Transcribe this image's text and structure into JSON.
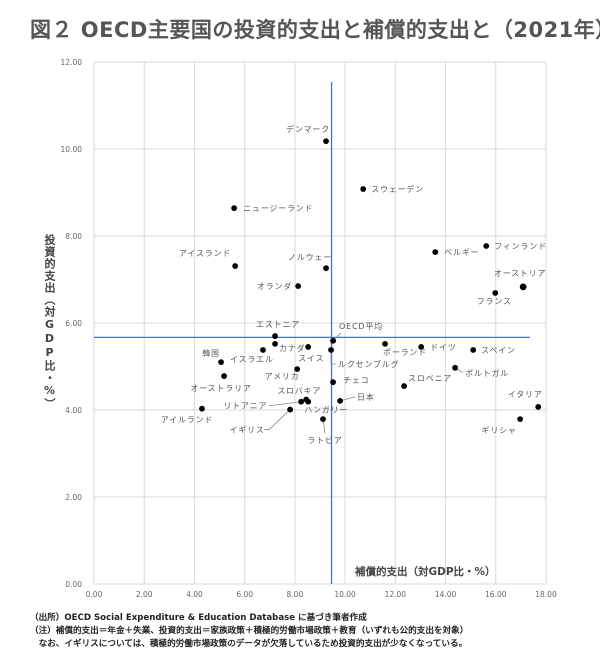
{
  "title": "図２ OECD主要国の投資的支出と補償的支出と（2021年）",
  "chart_data": {
    "type": "scatter",
    "title": "図２ OECD主要国の投資的支出と補償的支出と（2021年）",
    "xlabel": "補償的支出（対GDP比・%）",
    "ylabel": "投資的支出（対GDP比・%）",
    "xlim": [
      0,
      18
    ],
    "ylim": [
      0,
      12
    ],
    "xticks": [
      "0.00",
      "2.00",
      "4.00",
      "6.00",
      "8.00",
      "10.00",
      "12.00",
      "14.00",
      "16.00",
      "18.00"
    ],
    "yticks": [
      "0.00",
      "2.00",
      "4.00",
      "6.00",
      "8.00",
      "10.00",
      "12.00"
    ],
    "grid": true,
    "reference_lines": {
      "x": 9.5,
      "y": 5.6,
      "color": "#4472c4"
    },
    "point_color": "#000000",
    "points": [
      {
        "label": "デンマーク",
        "x": 9.24,
        "y": 10.18
      },
      {
        "label": "スウェーデン",
        "x": 10.72,
        "y": 9.08
      },
      {
        "label": "ニュージーランド",
        "x": 5.58,
        "y": 8.64
      },
      {
        "label": "アイスランド",
        "x": 5.62,
        "y": 7.31
      },
      {
        "label": "ノルウェー",
        "x": 9.24,
        "y": 7.26
      },
      {
        "label": "オランダ",
        "x": 8.13,
        "y": 6.85
      },
      {
        "label": "ベルギー",
        "x": 13.59,
        "y": 7.63
      },
      {
        "label": "フィンランド",
        "x": 15.62,
        "y": 7.77
      },
      {
        "label": "オーストリア",
        "x": 17.09,
        "y": 6.83
      },
      {
        "label": "フランス",
        "x": 15.98,
        "y": 6.69
      },
      {
        "label": "エストニア",
        "x": 7.21,
        "y": 5.7
      },
      {
        "label": "カナダ",
        "x": 7.21,
        "y": 5.52
      },
      {
        "label": "OECD平均",
        "x": 9.52,
        "y": 5.59
      },
      {
        "label": "韓国",
        "x": 5.06,
        "y": 5.1
      },
      {
        "label": "イスラエル",
        "x": 6.73,
        "y": 5.38
      },
      {
        "label": "スイス",
        "x": 8.53,
        "y": 5.45
      },
      {
        "label": "ルクセンブルグ",
        "x": 9.44,
        "y": 5.38
      },
      {
        "label": "ポーランド",
        "x": 11.59,
        "y": 5.52
      },
      {
        "label": "ドイツ",
        "x": 13.03,
        "y": 5.45
      },
      {
        "label": "スペイン",
        "x": 15.1,
        "y": 5.38
      },
      {
        "label": "アメリカ",
        "x": 8.09,
        "y": 4.94
      },
      {
        "label": "オーストラリア",
        "x": 5.18,
        "y": 4.78
      },
      {
        "label": "チェコ",
        "x": 9.52,
        "y": 4.64
      },
      {
        "label": "ポルトガル",
        "x": 14.38,
        "y": 4.97
      },
      {
        "label": "スロベニア",
        "x": 12.35,
        "y": 4.55
      },
      {
        "label": "スロバキア",
        "x": 8.45,
        "y": 4.24
      },
      {
        "label": "リトアニア",
        "x": 8.25,
        "y": 4.19
      },
      {
        "label": "ハンガリー",
        "x": 8.53,
        "y": 4.19
      },
      {
        "label": "日本",
        "x": 9.8,
        "y": 4.21
      },
      {
        "label": "アイルランド",
        "x": 4.3,
        "y": 4.03
      },
      {
        "label": "イギリス",
        "x": 7.81,
        "y": 4.01
      },
      {
        "label": "ラトビア",
        "x": 9.12,
        "y": 3.79
      },
      {
        "label": "イタリア",
        "x": 17.69,
        "y": 4.07
      },
      {
        "label": "ギリシャ",
        "x": 16.97,
        "y": 3.79
      }
    ]
  },
  "notes": {
    "source": "（出所）OECD Social Expenditure & Education Database に基づき筆者作成",
    "note1": "（注）補償的支出＝年金＋失業、投資的支出＝家族政策＋積極的労働市場政策＋教育（いずれも公的支出を対象）",
    "note2": "　なお、イギリスについては、積極的労働市場政策のデータが欠落しているため投資的支出が少なくなっている。"
  }
}
